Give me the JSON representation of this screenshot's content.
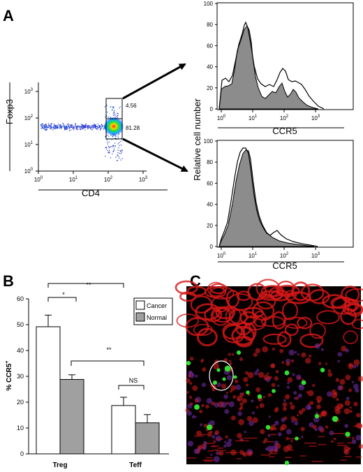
{
  "panels": {
    "a": {
      "letter": "A",
      "dotplot": {
        "xlabel": "CD4",
        "ylabel": "Foxp3",
        "gate_high_pct": "4.56",
        "gate_low_pct": "81.28",
        "x_ticks": [
          {
            "base": "10",
            "exp": "0"
          },
          {
            "base": "10",
            "exp": "1"
          },
          {
            "base": "10",
            "exp": "2"
          },
          {
            "base": "10",
            "exp": "3"
          }
        ],
        "y_ticks": [
          {
            "base": "10",
            "exp": "0"
          },
          {
            "base": "10",
            "exp": "1"
          },
          {
            "base": "10",
            "exp": "2"
          },
          {
            "base": "10",
            "exp": "3"
          }
        ]
      },
      "histograms": {
        "shared_ylabel": "Relative cell number",
        "top": {
          "xlabel": "CCR5",
          "y_ticks": [
            "0",
            "20",
            "40",
            "60",
            "80",
            "100"
          ],
          "x_ticks": [
            {
              "base": "10",
              "exp": "0"
            },
            {
              "base": "10",
              "exp": "1"
            },
            {
              "base": "10",
              "exp": "2"
            },
            {
              "base": "10",
              "exp": "3"
            }
          ]
        },
        "bottom": {
          "xlabel": "CCR5",
          "y_ticks": [
            "0",
            "20",
            "40",
            "60",
            "80",
            "100"
          ],
          "x_ticks": [
            {
              "base": "10",
              "exp": "0"
            },
            {
              "base": "10",
              "exp": "1"
            },
            {
              "base": "10",
              "exp": "2"
            },
            {
              "base": "10",
              "exp": "3"
            }
          ]
        }
      }
    },
    "b": {
      "letter": "B",
      "ylabel_main": "% CCR5",
      "ylabel_sup": "+",
      "legend": [
        {
          "label": "Cancer",
          "color": "#ffffff"
        },
        {
          "label": "Normal",
          "color": "#a0a0a0"
        }
      ],
      "sig": [
        {
          "label": "*"
        },
        {
          "label": "**"
        },
        {
          "label": "**"
        },
        {
          "label": "NS"
        }
      ]
    },
    "c": {
      "letter": "C"
    }
  },
  "chart_data": [
    {
      "type": "bar",
      "categories": [
        "Treg",
        "Teff"
      ],
      "series": [
        {
          "name": "Cancer",
          "values": [
            49.2,
            18.7
          ],
          "errors": [
            4.5,
            3.2
          ],
          "color": "#ffffff"
        },
        {
          "name": "Normal",
          "values": [
            28.8,
            12.0
          ],
          "errors": [
            1.8,
            3.2
          ],
          "color": "#a0a0a0"
        }
      ],
      "ylabel": "% CCR5+",
      "ylim": [
        0,
        60
      ],
      "y_ticks": [
        "0",
        "10",
        "20",
        "30",
        "40",
        "50",
        "60"
      ],
      "grid": false,
      "legend": "top-right"
    }
  ]
}
